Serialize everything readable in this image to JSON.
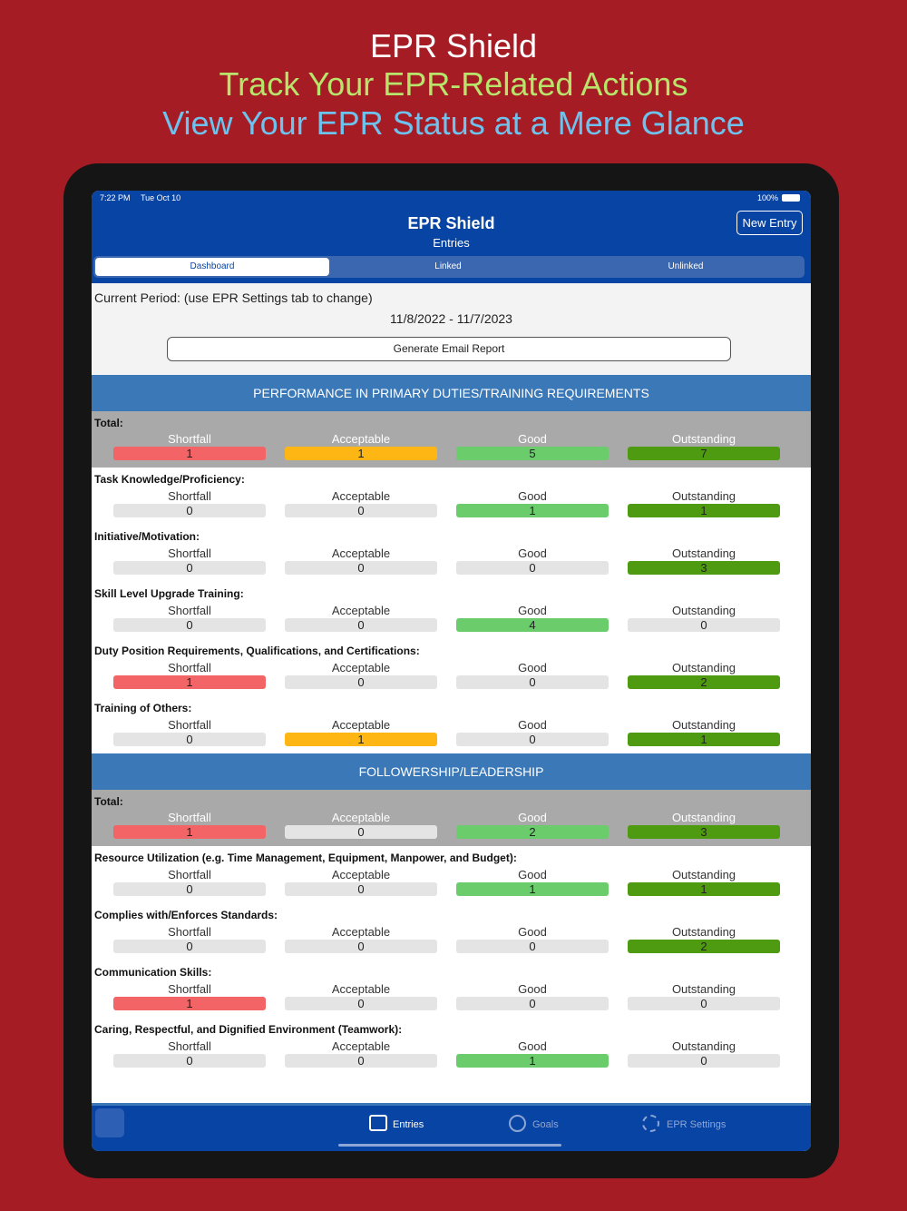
{
  "promo": {
    "title": "EPR Shield",
    "line1": "Track Your EPR-Related Actions",
    "line2": "View Your EPR Status at a Mere Glance"
  },
  "status_bar": {
    "time": "7:22 PM",
    "date": "Tue Oct 10",
    "battery": "100%"
  },
  "nav": {
    "title": "EPR Shield",
    "subtitle": "Entries",
    "button": "New Entry"
  },
  "tabs": [
    "Dashboard",
    "Linked",
    "Unlinked"
  ],
  "period": {
    "label": "Current Period: (use EPR Settings tab to change)",
    "range": "11/8/2022 - 11/7/2023",
    "button": "Generate Email Report"
  },
  "ratings": [
    "Shortfall",
    "Acceptable",
    "Good",
    "Outstanding"
  ],
  "sections": [
    {
      "title": "PERFORMANCE IN PRIMARY DUTIES/TRAINING REQUIREMENTS",
      "total_label": "Total:",
      "total": [
        1,
        1,
        5,
        7
      ],
      "items": [
        {
          "label": "Task Knowledge/Proficiency:",
          "counts": [
            0,
            0,
            1,
            1
          ]
        },
        {
          "label": "Initiative/Motivation:",
          "counts": [
            0,
            0,
            0,
            3
          ]
        },
        {
          "label": "Skill Level Upgrade Training:",
          "counts": [
            0,
            0,
            4,
            0
          ]
        },
        {
          "label": "Duty Position Requirements, Qualifications, and Certifications:",
          "counts": [
            1,
            0,
            0,
            2
          ]
        },
        {
          "label": "Training of Others:",
          "counts": [
            0,
            1,
            0,
            1
          ]
        }
      ]
    },
    {
      "title": "FOLLOWERSHIP/LEADERSHIP",
      "total_label": "Total:",
      "total": [
        1,
        0,
        2,
        3
      ],
      "items": [
        {
          "label": "Resource Utilization (e.g. Time Management, Equipment, Manpower, and Budget):",
          "counts": [
            0,
            0,
            1,
            1
          ]
        },
        {
          "label": "Complies with/Enforces Standards:",
          "counts": [
            0,
            0,
            0,
            2
          ]
        },
        {
          "label": "Communication Skills:",
          "counts": [
            1,
            0,
            0,
            0
          ]
        },
        {
          "label": "Caring, Respectful, and Dignified Environment (Teamwork):",
          "counts": [
            0,
            0,
            1,
            0
          ]
        }
      ]
    }
  ],
  "tab_bar": [
    "Entries",
    "Goals",
    "EPR Settings"
  ]
}
